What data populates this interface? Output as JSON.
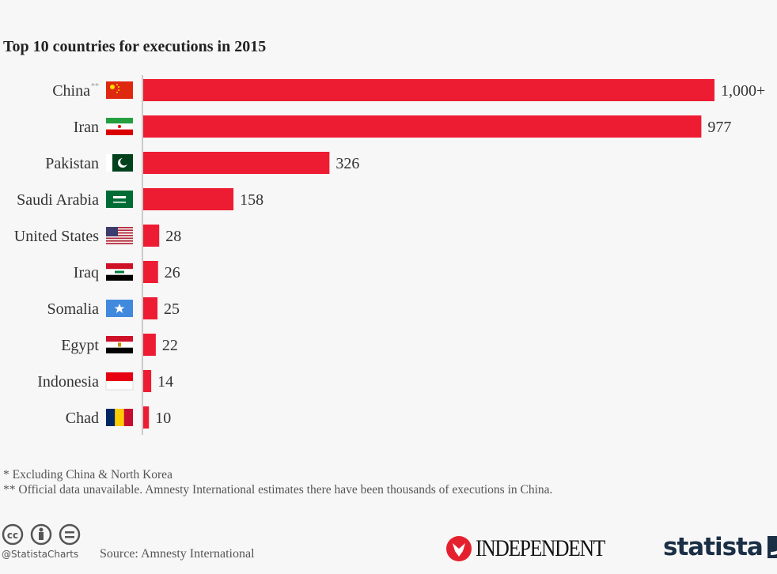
{
  "chart_data": {
    "type": "bar",
    "orientation": "horizontal",
    "title": "Top 10 countries for executions in 2015",
    "categories": [
      "China",
      "Iran",
      "Pakistan",
      "Saudi Arabia",
      "United States",
      "Iraq",
      "Somalia",
      "Egypt",
      "Indonesia",
      "Chad"
    ],
    "category_markers": [
      "**",
      "",
      "",
      "",
      "",
      "",
      "",
      "",
      "",
      ""
    ],
    "values": [
      1000,
      977,
      326,
      158,
      28,
      26,
      25,
      22,
      14,
      10
    ],
    "data_labels": [
      "1,000+",
      "977",
      "326",
      "158",
      "28",
      "26",
      "25",
      "22",
      "14",
      "10"
    ],
    "xlim": [
      0,
      1000
    ],
    "grid": false,
    "bar_color": "#ee1c33"
  },
  "footnotes": [
    "*   Excluding China & North Korea",
    "** Official data unavailable. Amnesty International estimates there have been thousands of executions in China."
  ],
  "footer": {
    "handle": "@StatistaCharts",
    "source": "Source: Amnesty International",
    "logos": [
      "INDEPENDENT",
      "statista"
    ],
    "license_icons": [
      "cc-icon",
      "attribution-icon",
      "no-derivatives-icon"
    ]
  }
}
